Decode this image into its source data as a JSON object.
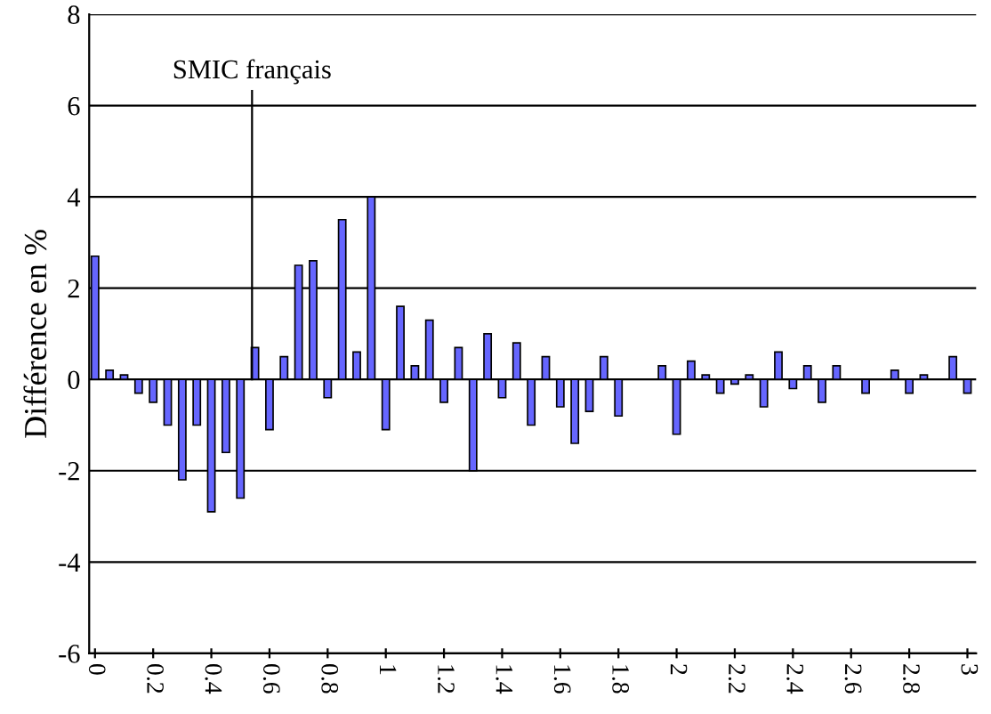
{
  "chart_data": {
    "type": "bar",
    "ylabel": "Différence en %",
    "x": [
      0,
      0.05,
      0.1,
      0.15,
      0.2,
      0.25,
      0.3,
      0.35,
      0.4,
      0.45,
      0.5,
      0.55,
      0.6,
      0.65,
      0.7,
      0.75,
      0.8,
      0.85,
      0.9,
      0.95,
      1,
      1.05,
      1.1,
      1.15,
      1.2,
      1.25,
      1.3,
      1.35,
      1.4,
      1.45,
      1.5,
      1.55,
      1.6,
      1.65,
      1.7,
      1.75,
      1.8,
      1.85,
      1.9,
      1.95,
      2,
      2.05,
      2.1,
      2.15,
      2.2,
      2.25,
      2.3,
      2.35,
      2.4,
      2.45,
      2.5,
      2.55,
      2.6,
      2.65,
      2.7,
      2.75,
      2.8,
      2.85,
      2.9,
      2.95,
      3
    ],
    "series": [
      {
        "color": "#6666ff",
        "values": [
          2.7,
          0.2,
          0.1,
          -0.3,
          -0.5,
          -1.0,
          -2.2,
          -1.0,
          -2.9,
          -1.6,
          -2.6,
          0.7,
          -1.1,
          0.5,
          2.5,
          2.6,
          -0.4,
          3.5,
          0.6,
          4.0,
          -1.1,
          1.6,
          0.3,
          1.3,
          -0.5,
          0.7,
          -2.0,
          1.0,
          -0.4,
          0.8,
          -1.0,
          0.5,
          -0.6,
          -1.4,
          -0.7,
          0.5,
          -0.8,
          null,
          null,
          0.3,
          -1.2,
          0.4,
          0.1,
          -0.3,
          -0.1,
          0.1,
          -0.6,
          0.6,
          -0.2,
          0.3,
          -0.5,
          0.3,
          null,
          -0.3,
          null,
          0.2,
          -0.3,
          0.1,
          null,
          0.5,
          -0.3
        ]
      }
    ],
    "xlim": [
      -0.02,
      3.03
    ],
    "xticks": [
      0,
      0.2,
      0.4,
      0.6,
      0.8,
      1,
      1.2,
      1.4,
      1.6,
      1.8,
      2,
      2.2,
      2.4,
      2.6,
      2.8,
      3
    ],
    "ylim": [
      -6,
      8
    ],
    "yticks": [
      -6,
      -4,
      -2,
      0,
      2,
      4,
      6,
      8
    ],
    "grid": "y",
    "ref_lines": [
      {
        "axis": "x",
        "value": 0.54,
        "label": "SMIC français"
      }
    ]
  }
}
